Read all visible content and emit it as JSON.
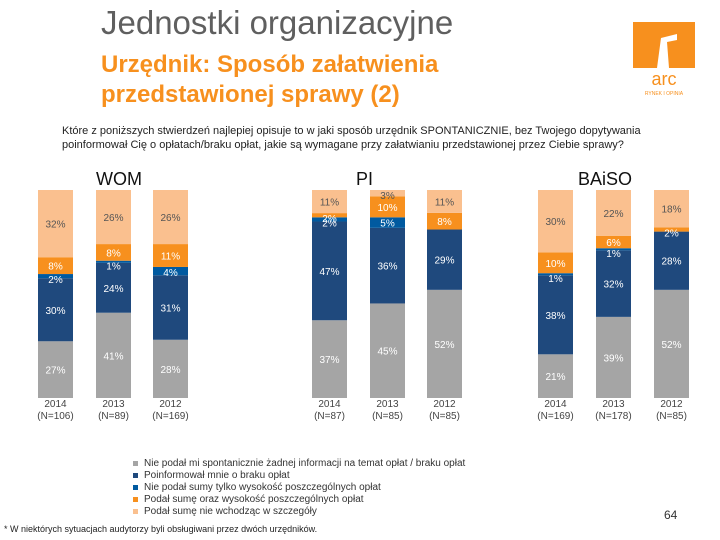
{
  "header": {
    "title": "Jednostki organizacyjne",
    "subtitle_line1": "Urzędnik: Sposób załatwienia",
    "subtitle_line2": "przedstawionej sprawy (2)",
    "logo_text": "arc",
    "logo_subtext": "RYNEK I OPINIA"
  },
  "question": "Które z poniższych stwierdzeń najlepiej opisuje to w jaki sposób urzędnik SPONTANICZNIE, bez Twojego dopytywania poinformował Cię o opłatach/braku opłat, jakie są wymagane przy załatwianiu przedstawionej przez Ciebie sprawy?",
  "footnote": "* W niektórych sytuacjach audytorzy byli obsługiwani przez dwóch urzędników.",
  "page_number": "64",
  "colors": {
    "nie_podal": "#a5a5a5",
    "poinformowal": "#1f497d",
    "tylko_wysokosc": "#005aa0",
    "sume_i_szczegoly": "#f7901e",
    "bez_szczegolow": "#fac08f",
    "logo_orange": "#f7901e"
  },
  "legend": [
    {
      "label": "Nie podał mi spontanicznie żadnej informacji na temat opłat / braku opłat",
      "color": "#a5a5a5"
    },
    {
      "label": "Poinformował mnie o braku opłat",
      "color": "#1f497d"
    },
    {
      "label": "Nie podał sumy tylko wysokość poszczególnych opłat",
      "color": "#005aa0"
    },
    {
      "label": "Podał sumę oraz wysokość poszczególnych opłat",
      "color": "#f7901e"
    },
    {
      "label": "Podał sumę nie wchodząc w szczegóły",
      "color": "#fac08f"
    }
  ],
  "chart_data": [
    {
      "type": "bar",
      "stacked": true,
      "group": "WOM",
      "categories": [
        "2014 (N=106)",
        "2013 (N=89)",
        "2012 (N=169)"
      ],
      "series": [
        {
          "name": "Nie podał mi spontanicznie żadnej informacji na temat opłat / braku opłat",
          "values": [
            27,
            41,
            28
          ],
          "labels": [
            "27%",
            "41%",
            "28%"
          ]
        },
        {
          "name": "Poinformował mnie o braku opłat",
          "values": [
            30,
            24,
            31
          ],
          "labels": [
            "30%",
            "24%",
            "31%"
          ]
        },
        {
          "name": "Nie podał sumy tylko wysokość poszczególnych opłat",
          "values": [
            2,
            1,
            4
          ],
          "labels": [
            "2%",
            "1%",
            "4%"
          ]
        },
        {
          "name": "Podał sumę oraz wysokość poszczególnych opłat",
          "values": [
            8,
            8,
            11
          ],
          "labels": [
            "8%",
            "8%",
            "11%"
          ]
        },
        {
          "name": "Podał sumę nie wchodząc w szczegóły",
          "values": [
            32,
            26,
            26
          ],
          "labels": [
            "32%",
            "26%",
            "26%"
          ]
        }
      ],
      "ylim": [
        0,
        100
      ]
    },
    {
      "type": "bar",
      "stacked": true,
      "group": "PI",
      "categories": [
        "2014 (N=87)",
        "2013 (N=85)",
        "2012 (N=85)"
      ],
      "series": [
        {
          "name": "Nie podał mi spontanicznie żadnej informacji na temat opłat / braku opłat",
          "values": [
            37,
            45,
            52
          ],
          "labels": [
            "37%",
            "45%",
            "52%"
          ]
        },
        {
          "name": "Poinformował mnie o braku opłat",
          "values": [
            47,
            36,
            29
          ],
          "labels": [
            "47%",
            "36%",
            "29%"
          ]
        },
        {
          "name": "Nie podał sumy tylko wysokość poszczególnych opłat",
          "values": [
            2,
            5,
            0
          ],
          "labels": [
            "2%",
            "5%",
            ""
          ]
        },
        {
          "name": "Podał sumę oraz wysokość poszczególnych opłat",
          "values": [
            2,
            10,
            8
          ],
          "labels": [
            "2%",
            "10%",
            "8%"
          ]
        },
        {
          "name": "Podał sumę nie wchodząc w szczegóły",
          "values": [
            11,
            3,
            11
          ],
          "labels": [
            "11%",
            "3%",
            "11%"
          ]
        }
      ],
      "ylim": [
        0,
        100
      ]
    },
    {
      "type": "bar",
      "stacked": true,
      "group": "BAiSO",
      "categories": [
        "2014 (N=169)",
        "2013 (N=178)",
        "2012 (N=85)"
      ],
      "series": [
        {
          "name": "Nie podał mi spontanicznie żadnej informacji na temat opłat / braku opłat",
          "values": [
            21,
            39,
            52
          ],
          "labels": [
            "21%",
            "39%",
            "52%"
          ]
        },
        {
          "name": "Poinformował mnie o braku opłat",
          "values": [
            38,
            32,
            28
          ],
          "labels": [
            "38%",
            "32%",
            "28%"
          ]
        },
        {
          "name": "Nie podał sumy tylko wysokość poszczególnych opłat",
          "values": [
            1,
            1,
            0
          ],
          "labels": [
            "1%",
            "1%",
            ""
          ]
        },
        {
          "name": "Podał sumę oraz wysokość poszczególnych opłat",
          "values": [
            10,
            6,
            2
          ],
          "labels": [
            "10%",
            "6%",
            "2%"
          ]
        },
        {
          "name": "Podał sumę nie wchodząc w szczegóły",
          "values": [
            30,
            22,
            18
          ],
          "labels": [
            "30%",
            "22%",
            "18%"
          ]
        }
      ],
      "ylim": [
        0,
        100
      ]
    }
  ]
}
